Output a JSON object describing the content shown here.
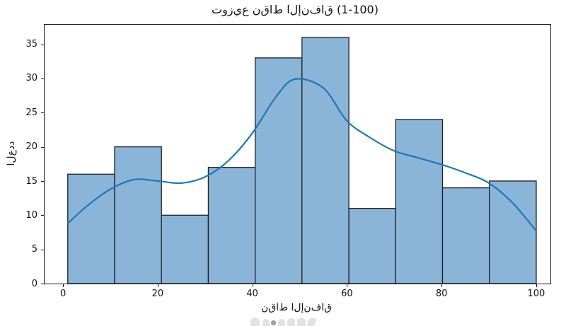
{
  "display": {
    "title_glyphs": "ت‌و‌ز‌ي‌ع ن‌ق‌ا‌ط ا‌ل‌إ‌ن‌ف‌ا‌ق (1-100)",
    "xlabel_glyphs": "ن‌ق‌ا‌ط ا‌ل‌إ‌ن‌ف‌ا‌ق",
    "ylabel_glyphs": "ا‌ل‌ع‌د‌د"
  },
  "chart_data": {
    "type": "bar",
    "subtype": "histogram_with_kde",
    "title": "توزيع نقاط الإنفاق (1-100)",
    "xlabel": "نقاط الإنفاق",
    "ylabel": "العدد",
    "bin_edges": [
      1,
      10.9,
      20.8,
      30.7,
      40.6,
      50.5,
      60.4,
      70.3,
      80.2,
      90.1,
      100
    ],
    "counts": [
      16,
      20,
      10,
      17,
      33,
      36,
      11,
      24,
      14,
      15
    ],
    "kde": {
      "x": [
        1,
        5,
        10,
        15,
        20,
        25,
        30,
        35,
        40,
        45,
        49,
        55,
        60,
        65,
        70,
        75,
        80,
        85,
        90,
        95,
        100
      ],
      "y": [
        8.8,
        11.3,
        13.8,
        15.2,
        15.0,
        14.7,
        15.6,
        18.0,
        22.0,
        27.3,
        29.9,
        28.6,
        23.8,
        21.3,
        19.4,
        18.4,
        17.4,
        16.2,
        14.7,
        11.8,
        7.7
      ]
    },
    "xticks": [
      0,
      20,
      40,
      60,
      80,
      100
    ],
    "yticks": [
      0,
      5,
      10,
      15,
      20,
      25,
      30,
      35
    ],
    "xlim": [
      -3.9,
      103.0
    ],
    "ylim": [
      0,
      37.85
    ],
    "grid": false,
    "legend": "none",
    "colors": {
      "bar_fill": "#8ab5d8",
      "bar_edge": "#1f1f1f",
      "kde_line": "#1f77b4",
      "spine": "#1a1a1a",
      "text": "#111111"
    }
  }
}
